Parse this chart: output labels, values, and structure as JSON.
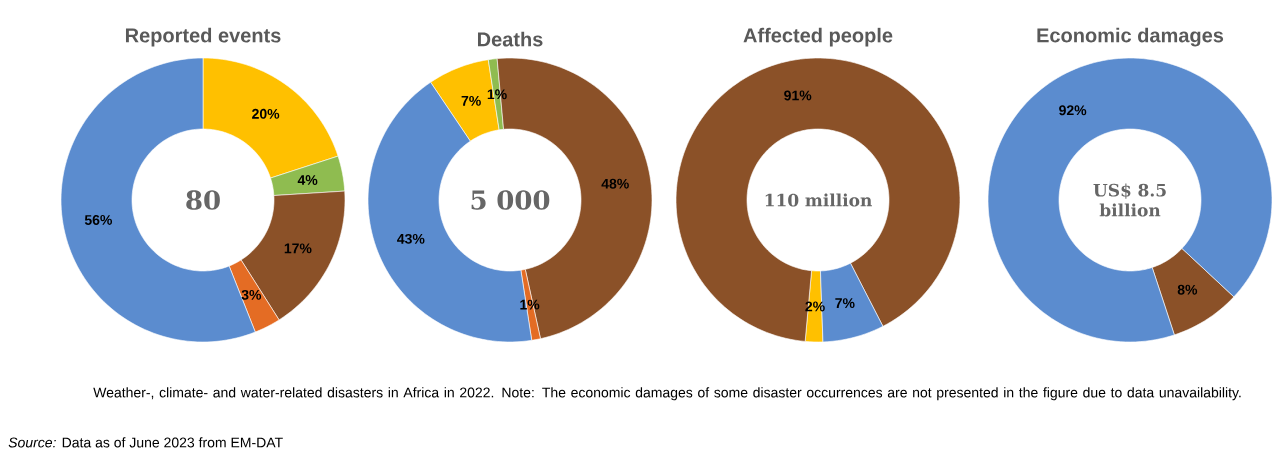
{
  "chart_data": [
    {
      "type": "donut",
      "title": "Reported events",
      "categories": [
        null,
        null,
        null,
        null,
        null
      ],
      "values": [
        20,
        4,
        17,
        3,
        56
      ],
      "value_labels": [
        "20%",
        "4%",
        "17%",
        "3%",
        "56%"
      ],
      "colors": [
        "#ffc000",
        "#8fbc50",
        "#8b5128",
        "#e46c24",
        "#5b8ccf"
      ],
      "annotations": [
        "80",
        "Weather-, climate- and water-related disasters in Africa in 2022. Note: The economic damages of some disaster occurrences are not presented in the figure due to data unavailability.",
        "*Source:* Data as of June 2023 from EM-DAT"
      ]
    },
    {
      "type": "donut",
      "title": "Deaths",
      "categories": [
        null,
        null,
        null,
        null,
        null
      ],
      "values": [
        7,
        1,
        48,
        1,
        43
      ],
      "value_labels": [
        "7%",
        "1%",
        "48%",
        "1%",
        "43%"
      ],
      "colors": [
        "#ffc000",
        "#8fbc50",
        "#8b5128",
        "#e46c24",
        "#5b8ccf"
      ],
      "annotations": [
        "5 000"
      ]
    },
    {
      "type": "donut",
      "title": "Affected people",
      "categories": [
        null,
        null,
        null,
        null,
        null
      ],
      "values": [
        2,
        0,
        91,
        0,
        7
      ],
      "value_labels": [
        "2%",
        null,
        "91%",
        null,
        "7%"
      ],
      "colors": [
        "#ffc000",
        "#8fbc50",
        "#8b5128",
        "#e46c24",
        "#5b8ccf"
      ],
      "annotations": [
        "110 million"
      ]
    },
    {
      "type": "donut",
      "title": "Economic damages",
      "categories": [
        null,
        null,
        null,
        null,
        null
      ],
      "values": [
        0,
        0,
        8,
        0,
        92
      ],
      "value_labels": [
        null,
        null,
        "8%",
        null,
        "92%"
      ],
      "colors": [
        "#ffc000",
        "#8fbc50",
        "#8b5128",
        "#e46c24",
        "#5b8ccf"
      ],
      "annotations": [
        "US$ 8.5 billion"
      ]
    }
  ]
}
